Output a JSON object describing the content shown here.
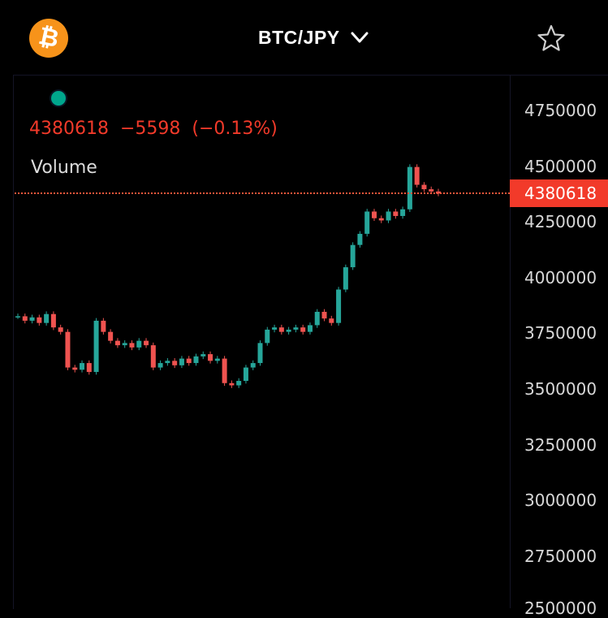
{
  "header": {
    "logo_icon": "bitcoin-logo-icon",
    "pair": "BTC/JPY",
    "dropdown_icon": "chevron-down-icon",
    "favorite_icon": "star-icon"
  },
  "quote": {
    "last": "4380618",
    "change": "−5598",
    "change_pct": "(−0.13%)",
    "color": "#f23a2a"
  },
  "indicator": {
    "label": "Volume"
  },
  "price_axis": {
    "ticks": [
      "4750000",
      "4500000",
      "4250000",
      "4000000",
      "3750000",
      "3500000",
      "3250000",
      "3000000",
      "2750000",
      "2500000"
    ],
    "last_price_tag": "4380618"
  },
  "colors": {
    "up": "#26a69a",
    "down": "#ef5350",
    "accent": "#f7931a",
    "background": "#000000"
  },
  "chart_data": {
    "type": "line",
    "title": "BTC/JPY",
    "ylim": [
      2500000,
      4800000
    ],
    "y_ticks": [
      2500000,
      2750000,
      3000000,
      3250000,
      3500000,
      3750000,
      4000000,
      4250000,
      4500000,
      4750000
    ],
    "last_price": 4380618,
    "series": [
      {
        "values": [
          3830000,
          3810000,
          3825000,
          3800000,
          3840000,
          3780000,
          3760000,
          3600000,
          3590000,
          3620000,
          3580000,
          3810000,
          3760000,
          3720000,
          3700000,
          3710000,
          3690000,
          3720000,
          3700000,
          3600000,
          3620000,
          3630000,
          3610000,
          3640000,
          3620000,
          3650000,
          3660000,
          3630000,
          3640000,
          3530000,
          3520000,
          3540000,
          3600000,
          3620000,
          3710000,
          3770000,
          3780000,
          3760000,
          3770000,
          3780000,
          3760000,
          3790000,
          3850000,
          3820000,
          3800000,
          3950000,
          4050000,
          4150000,
          4200000,
          4300000,
          4270000,
          4260000,
          4300000,
          4280000,
          4310000,
          4500000,
          4420000,
          4400000,
          4390000,
          4380618
        ]
      }
    ]
  }
}
